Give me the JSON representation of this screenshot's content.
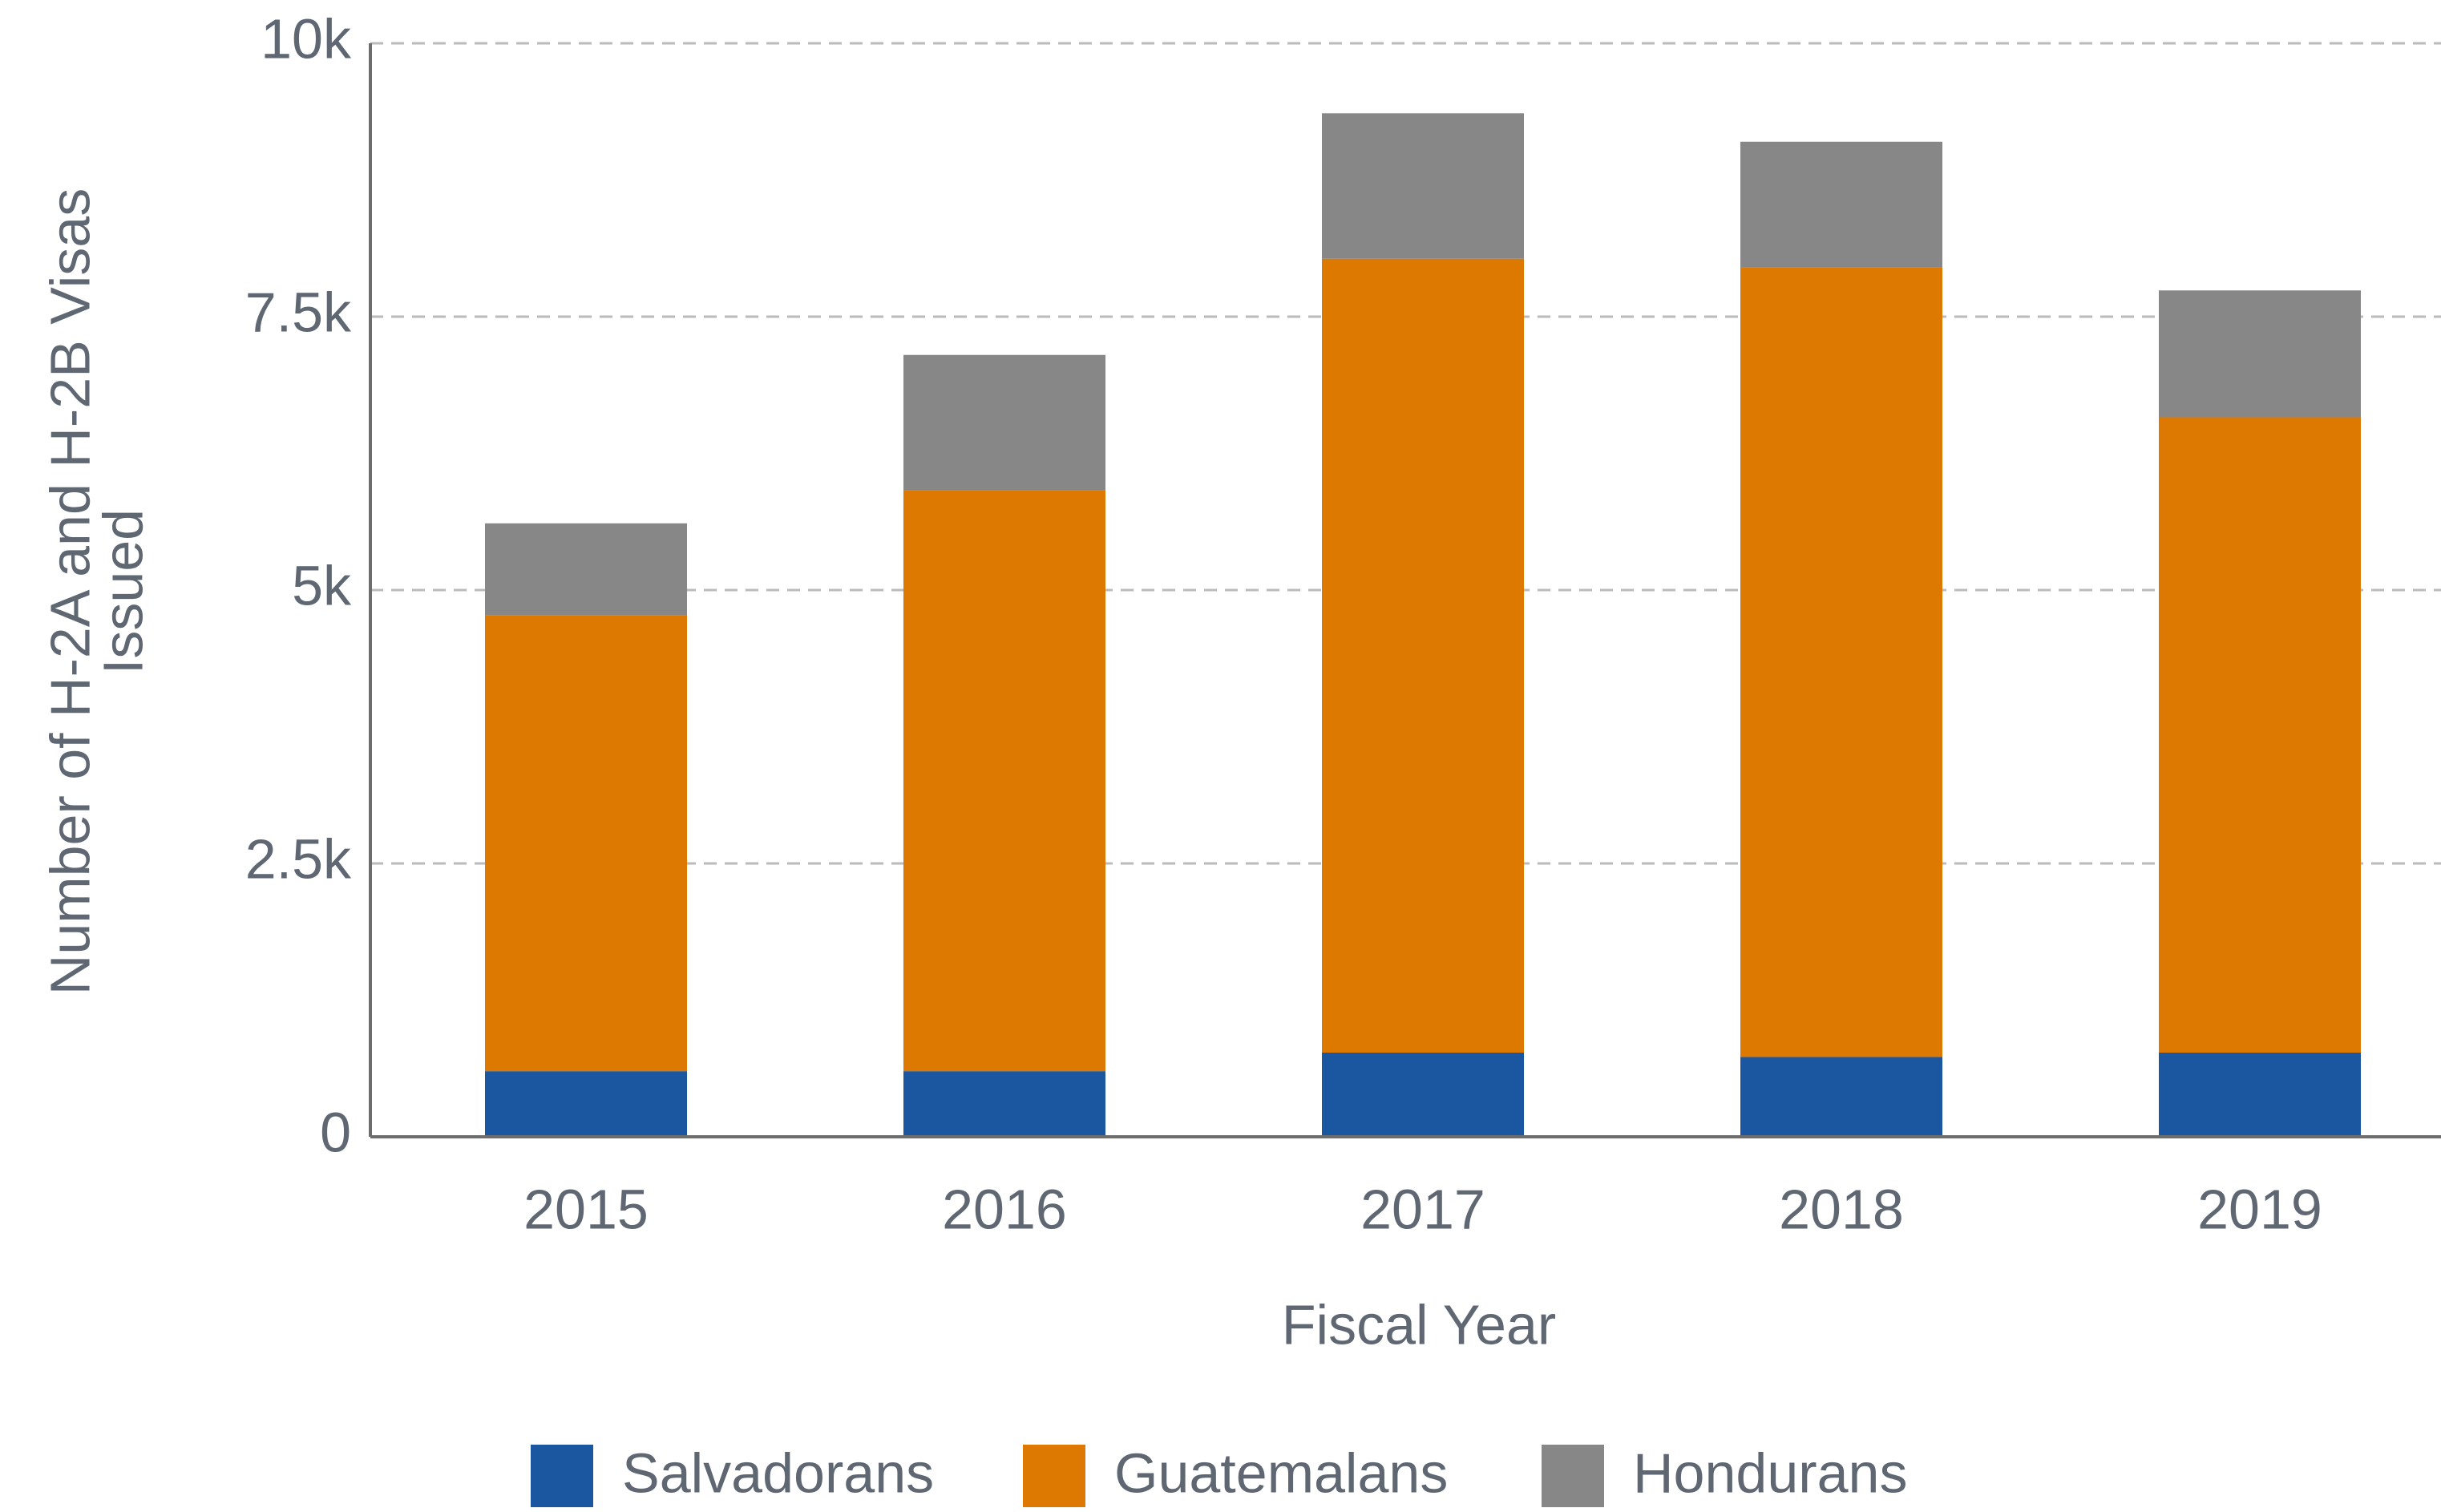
{
  "chart_data": {
    "type": "stacked_bar",
    "x_label": "Fiscal Year",
    "y_label": [
      "Number of H-2A and H-2B Visas",
      "Issued"
    ],
    "categories": [
      "2015",
      "2016",
      "2017",
      "2018",
      "2019"
    ],
    "series": [
      {
        "name": "Salvadorans",
        "color": "#1b56a0",
        "values": [
          600,
          600,
          770,
          730,
          770
        ]
      },
      {
        "name": "Guatemalans",
        "color": "#dd7800",
        "values": [
          4170,
          5310,
          7260,
          7220,
          5810
        ]
      },
      {
        "name": "Hondurans",
        "color": "#878787",
        "values": [
          840,
          1240,
          1330,
          1150,
          1160
        ]
      }
    ],
    "ylim": [
      0,
      10000
    ],
    "yticks": [
      0,
      {
        "value": 2500,
        "label": "2.5k"
      },
      {
        "value": 5000,
        "label": "5k"
      },
      {
        "value": 7500,
        "label": "7.5k"
      },
      {
        "value": 10000,
        "label": "10k"
      }
    ],
    "grid": true,
    "legend": "bottom"
  }
}
